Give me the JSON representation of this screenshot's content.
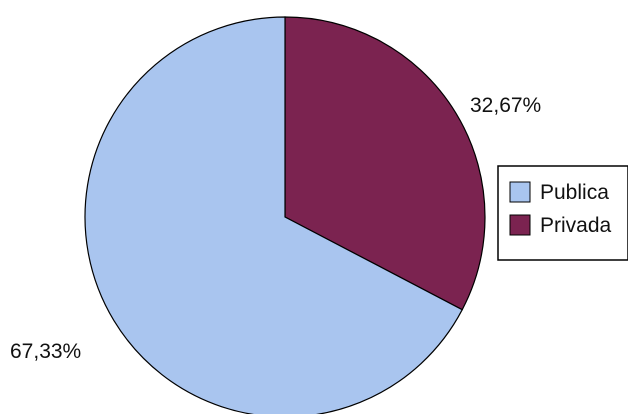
{
  "chart_data": {
    "type": "pie",
    "title": "",
    "categories": [
      "Publica",
      "Privada"
    ],
    "values": [
      67.33,
      32.67
    ],
    "data_labels": [
      "67,33%",
      "32,67%"
    ],
    "units": "%",
    "colors": [
      "#a9c5ef",
      "#7b2350"
    ],
    "legend": {
      "placement": "right",
      "entries": [
        "Publica",
        "Privada"
      ]
    },
    "start_angle_deg": 0,
    "direction": "clockwise"
  }
}
